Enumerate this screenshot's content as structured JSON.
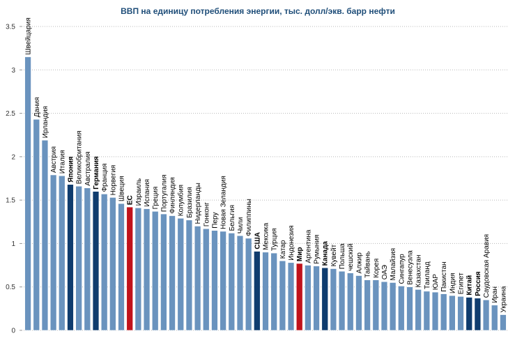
{
  "chart_data": {
    "type": "bar",
    "title": "ВВП на единицу потребления энергии, тыс. долл/экв. барр нефти",
    "xlabel": "",
    "ylabel": "",
    "ylim": [
      0,
      3.5
    ],
    "yticks": [
      "0",
      "0.5",
      "1",
      "1.5",
      "2",
      "2.5",
      "3",
      "3.5"
    ],
    "grid": "horizontal-dotted",
    "colors": {
      "default": "#6a93be",
      "highlight_dark": "#0f3c6e",
      "highlight_red": "#c0121b",
      "title": "#1f4e79",
      "grid": "#b8b8b8"
    },
    "categories": [
      "Швейцария",
      "Дания",
      "Ирландия",
      "Австрия",
      "Италия",
      "Япония",
      "Великобритания",
      "Австралия",
      "Германия",
      "Франция",
      "Норвегия",
      "Швеция",
      "ЕС",
      "Израиль",
      "Испания",
      "Греция",
      "Португалия",
      "Финляндия",
      "Колумбия",
      "Бразилия",
      "Нидерланды",
      "Гонконг",
      "Перу",
      "Новая Зеландия",
      "Бельгия",
      "Чили",
      "Филиппины",
      "США",
      "Мексика",
      "Турция",
      "Катар",
      "Индонезия",
      "Мир",
      "Аргентина",
      "Румыния",
      "Канада",
      "Кувейт",
      "Польша",
      "чешский",
      "Алжир",
      "Тайвань",
      "Корея",
      "ОАЭ",
      "Малайзия",
      "Сингапур",
      "Венесуэла",
      "Казахстан",
      "Таиланд",
      "ЮАР",
      "Пакистан",
      "Индия",
      "Египет",
      "Китай",
      "Россия",
      "Саудовская Аравия",
      "Иран",
      "Украина"
    ],
    "values": [
      3.15,
      2.43,
      2.19,
      1.79,
      1.78,
      1.68,
      1.66,
      1.64,
      1.6,
      1.57,
      1.53,
      1.46,
      1.42,
      1.41,
      1.4,
      1.37,
      1.34,
      1.32,
      1.29,
      1.27,
      1.2,
      1.17,
      1.15,
      1.14,
      1.12,
      1.09,
      1.06,
      0.91,
      0.9,
      0.89,
      0.8,
      0.78,
      0.77,
      0.75,
      0.74,
      0.72,
      0.71,
      0.68,
      0.66,
      0.63,
      0.58,
      0.58,
      0.56,
      0.55,
      0.51,
      0.5,
      0.47,
      0.45,
      0.44,
      0.42,
      0.4,
      0.39,
      0.38,
      0.37,
      0.35,
      0.29,
      0.18
    ],
    "highlight": [
      "default",
      "default",
      "default",
      "default",
      "default",
      "dark",
      "default",
      "default",
      "dark",
      "default",
      "default",
      "default",
      "red",
      "default",
      "default",
      "default",
      "default",
      "default",
      "default",
      "default",
      "default",
      "default",
      "default",
      "default",
      "default",
      "default",
      "default",
      "dark",
      "default",
      "default",
      "default",
      "default",
      "red",
      "default",
      "default",
      "dark",
      "default",
      "default",
      "default",
      "default",
      "default",
      "default",
      "default",
      "default",
      "default",
      "default",
      "default",
      "default",
      "default",
      "default",
      "default",
      "default",
      "dark",
      "dark",
      "default",
      "default",
      "default"
    ],
    "bold_labels": [
      "Япония",
      "Германия",
      "ЕС",
      "США",
      "Мир",
      "Канада",
      "Китай",
      "Россия"
    ]
  }
}
